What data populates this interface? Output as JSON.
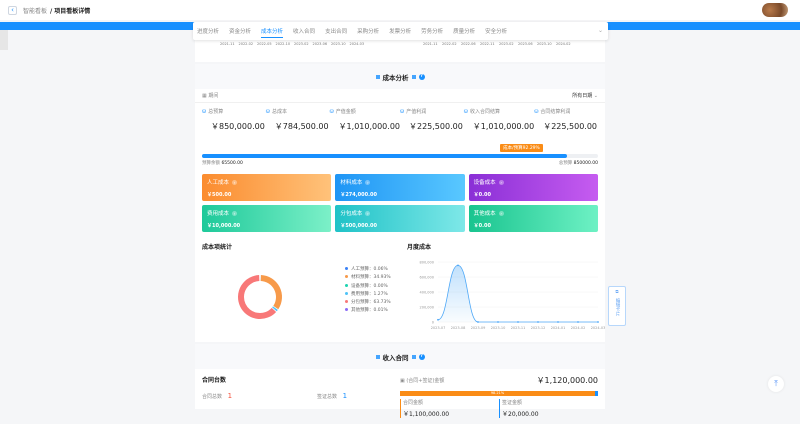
{
  "header": {
    "back_icon": "chevron-left-icon",
    "breadcrumb_parent": "智能看板",
    "breadcrumb_current": "/ 项目看板详情"
  },
  "tabs": [
    "进度分析",
    "资金分析",
    "成本分析",
    "收入合同",
    "支出合同",
    "采购分析",
    "发票分析",
    "劳务分析",
    "质量分析",
    "安全分析"
  ],
  "active_tab": "成本分析",
  "prev_chart_axis": {
    "left": [
      "2021-11",
      "2022-02",
      "2022-05",
      "2022-10",
      "2023-02",
      "2023-06",
      "2023-10",
      "2024-03"
    ],
    "right": [
      "2021-11",
      "2022-02",
      "2022-06",
      "2022-11",
      "2023-02",
      "2023-06",
      "2023-10",
      "2024-02"
    ]
  },
  "cost": {
    "title": "成本分析",
    "date_label": "期间",
    "date_select": "所有日期",
    "stats": [
      {
        "label": "总预算",
        "value": "￥850,000.00"
      },
      {
        "label": "总成本",
        "value": "￥784,500.00"
      },
      {
        "label": "产值金额",
        "value": "￥1,010,000.00"
      },
      {
        "label": "产值利润",
        "value": "￥225,500.00"
      },
      {
        "label": "收入合同结算",
        "value": "￥1,010,000.00"
      },
      {
        "label": "合同结算利润",
        "value": "￥225,500.00"
      }
    ],
    "progress": {
      "tip": "成本/预算92.29%",
      "percent": 92.29,
      "left_label": "预算余额",
      "left_value": "65500.00",
      "right_label": "总预算",
      "right_value": "850000.00"
    },
    "tiles": [
      {
        "label": "人工成本",
        "value": "￥500.00",
        "colors": [
          "#fb8c2f",
          "#ffc27a"
        ]
      },
      {
        "label": "材料成本",
        "value": "￥274,000.00",
        "colors": [
          "#1f95f5",
          "#59c8ff"
        ]
      },
      {
        "label": "设备成本",
        "value": "￥0.00",
        "colors": [
          "#8a2fd6",
          "#c65cf0"
        ]
      },
      {
        "label": "费用成本",
        "value": "￥10,000.00",
        "colors": [
          "#1ec99a",
          "#7cf0c8"
        ]
      },
      {
        "label": "分包成本",
        "value": "￥500,000.00",
        "colors": [
          "#1fc2c7",
          "#7ee8e8"
        ]
      },
      {
        "label": "其他成本",
        "value": "￥0.00",
        "colors": [
          "#19c48f",
          "#6ef1c4"
        ]
      }
    ],
    "pie_title": "成本项统计",
    "legend": [
      {
        "label": "人工预算：0.06%",
        "color": "#3b82f6",
        "pct": 0.06
      },
      {
        "label": "材料预算：34.93%",
        "color": "#f79a4a",
        "pct": 34.93
      },
      {
        "label": "设备预算：0.00%",
        "color": "#1dd3b0",
        "pct": 0
      },
      {
        "label": "费用预算：1.27%",
        "color": "#4fc3f7",
        "pct": 1.27
      },
      {
        "label": "分包预算：63.73%",
        "color": "#f87878",
        "pct": 63.73
      },
      {
        "label": "其他预算：0.01%",
        "color": "#8b6cf6",
        "pct": 0.01
      }
    ]
  },
  "chart_data": {
    "type": "area",
    "title": "月度成本",
    "x": [
      "2023-07",
      "2023-08",
      "2023-09",
      "2023-10",
      "2023-11",
      "2023-12",
      "2024-01",
      "2024-02",
      "2024-03"
    ],
    "values": [
      29500,
      755000,
      0,
      0,
      0,
      0,
      0,
      0,
      0
    ],
    "yticks": [
      "0",
      "200,000",
      "400,000",
      "600,000",
      "800,000"
    ],
    "ylim": [
      0,
      800000
    ],
    "color": "#4ea8f7"
  },
  "income": {
    "title": "收入合同",
    "count_title": "合同台数",
    "total_label": "合同总数",
    "total_value": "1",
    "visa_label": "签证总数",
    "visa_value": "1",
    "amount_label": "(合同+签证)金额",
    "amount_value": "￥1,120,000.00",
    "bar_pct": "98.21%",
    "contract_label": "合同金额",
    "contract_value": "￥1,100,000.00",
    "visa_amount_label": "签证金额",
    "visa_amount_value": "￥20,000.00"
  },
  "float": {
    "edit_label": "编辑卡片",
    "top_icon": "back-to-top-icon"
  }
}
